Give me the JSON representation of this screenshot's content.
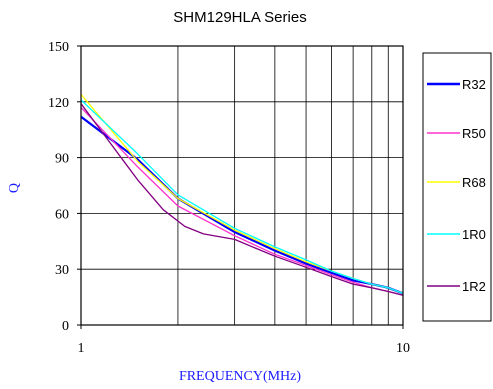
{
  "chart_data": {
    "type": "line",
    "title": "SHM129HLA Series",
    "xlabel": "FREQUENCY(MHz)",
    "ylabel": "Q",
    "x_scale": "log",
    "xlim": [
      1,
      10
    ],
    "ylim": [
      0,
      150
    ],
    "x_ticks": [
      1,
      10
    ],
    "x_tick_labels": [
      "1",
      "10"
    ],
    "y_ticks": [
      0,
      30,
      60,
      90,
      120,
      150
    ],
    "y_tick_labels": [
      "0",
      "30",
      "60",
      "90",
      "120",
      "150"
    ],
    "grid": true,
    "legend_position": "right",
    "series": [
      {
        "name": "R32",
        "color": "#0000ff",
        "x": [
          1,
          1.5,
          2,
          3,
          4,
          5,
          6,
          7,
          8,
          9,
          10
        ],
        "y": [
          112,
          89,
          68,
          50,
          40,
          33,
          28,
          24,
          22,
          20,
          17
        ]
      },
      {
        "name": "R50",
        "color": "#ff33cc",
        "x": [
          1,
          1.5,
          2,
          3,
          4,
          5,
          6,
          7,
          8,
          9,
          10
        ],
        "y": [
          117,
          85,
          64,
          48,
          38,
          32,
          27,
          23,
          20,
          18,
          16
        ]
      },
      {
        "name": "R68",
        "color": "#ffff00",
        "x": [
          1,
          1.5,
          2,
          3,
          4,
          5,
          6,
          7,
          8,
          9,
          10
        ],
        "y": [
          124,
          88,
          68,
          51,
          41,
          34,
          29,
          25,
          22,
          20,
          17
        ]
      },
      {
        "name": "1R0",
        "color": "#00ffff",
        "x": [
          1,
          1.5,
          2,
          3,
          4,
          5,
          6,
          7,
          8,
          9,
          10
        ],
        "y": [
          121,
          92,
          70,
          52,
          42,
          35,
          29,
          25,
          22,
          20,
          17
        ]
      },
      {
        "name": "1R2",
        "color": "#800080",
        "x": [
          1,
          1.5,
          1.8,
          2.1,
          2.4,
          3,
          4,
          5,
          6,
          7,
          8,
          9,
          10
        ],
        "y": [
          119,
          78,
          62,
          53,
          49,
          46,
          37,
          31,
          26,
          22,
          20,
          18,
          16
        ]
      }
    ]
  }
}
